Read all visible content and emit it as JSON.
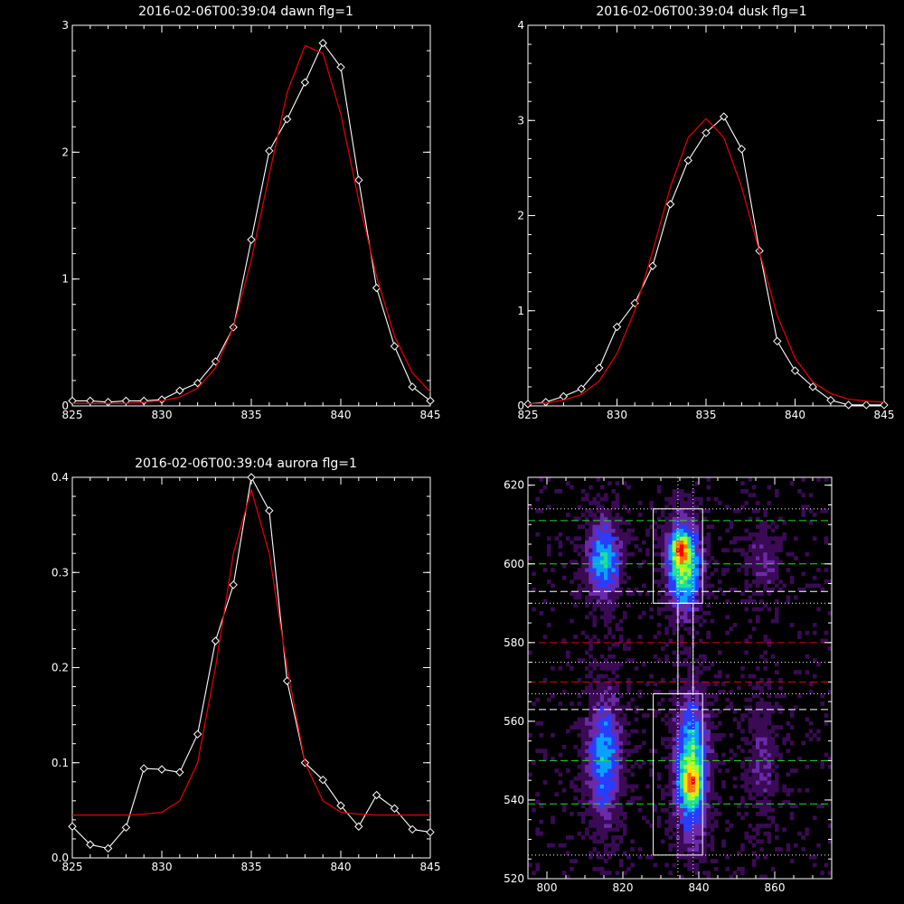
{
  "chart_data": [
    {
      "type": "line",
      "title": "2016-02-06T00:39:04 dawn flg=1",
      "xlim": [
        825,
        845
      ],
      "ylim": [
        0,
        3
      ],
      "xticks": [
        "825",
        "830",
        "835",
        "840",
        "845"
      ],
      "yticks": [
        "0",
        "1",
        "2",
        "3"
      ],
      "grid": false,
      "series": [
        {
          "role": "data",
          "color": "#ffffff",
          "marker": "diamond",
          "x": [
            825,
            826,
            827,
            828,
            829,
            830,
            831,
            832,
            833,
            834,
            835,
            836,
            837,
            838,
            839,
            840,
            841,
            842,
            843,
            844,
            845
          ],
          "y": [
            0.04,
            0.04,
            0.03,
            0.04,
            0.04,
            0.05,
            0.12,
            0.18,
            0.35,
            0.62,
            1.31,
            2.01,
            2.26,
            2.55,
            2.86,
            2.67,
            1.78,
            0.93,
            0.47,
            0.15,
            0.04
          ]
        },
        {
          "role": "fit",
          "color": "#dd0000",
          "x": [
            825,
            826,
            827,
            828,
            829,
            830,
            831,
            832,
            833,
            834,
            835,
            836,
            837,
            838,
            839,
            840,
            841,
            842,
            843,
            844,
            845
          ],
          "y": [
            0.02,
            0.02,
            0.02,
            0.02,
            0.03,
            0.04,
            0.07,
            0.14,
            0.3,
            0.62,
            1.15,
            1.82,
            2.47,
            2.84,
            2.78,
            2.3,
            1.62,
            1.02,
            0.55,
            0.26,
            0.11
          ]
        }
      ]
    },
    {
      "type": "line",
      "title": "2016-02-06T00:39:04 dusk flg=1",
      "xlim": [
        825,
        845
      ],
      "ylim": [
        0,
        4
      ],
      "xticks": [
        "825",
        "830",
        "835",
        "840",
        "845"
      ],
      "yticks": [
        "0",
        "1",
        "2",
        "3",
        "4"
      ],
      "grid": false,
      "series": [
        {
          "role": "data",
          "color": "#ffffff",
          "marker": "diamond",
          "x": [
            825,
            826,
            827,
            828,
            829,
            830,
            831,
            832,
            833,
            834,
            835,
            836,
            837,
            838,
            839,
            840,
            841,
            842,
            843,
            844,
            845
          ],
          "y": [
            0.02,
            0.04,
            0.1,
            0.18,
            0.4,
            0.83,
            1.08,
            1.47,
            2.12,
            2.58,
            2.87,
            3.04,
            2.7,
            1.63,
            0.68,
            0.37,
            0.2,
            0.06,
            0.01,
            0.01,
            0.01
          ]
        },
        {
          "role": "fit",
          "color": "#dd0000",
          "x": [
            825,
            826,
            827,
            828,
            829,
            830,
            831,
            832,
            833,
            834,
            835,
            836,
            837,
            838,
            839,
            840,
            841,
            842,
            843,
            844,
            845
          ],
          "y": [
            0.02,
            0.03,
            0.06,
            0.12,
            0.26,
            0.55,
            1.0,
            1.62,
            2.3,
            2.82,
            3.02,
            2.82,
            2.3,
            1.62,
            0.95,
            0.5,
            0.25,
            0.13,
            0.07,
            0.05,
            0.04
          ]
        }
      ]
    },
    {
      "type": "line",
      "title": "2016-02-06T00:39:04 aurora flg=1",
      "xlim": [
        825,
        845
      ],
      "ylim": [
        0,
        0.4
      ],
      "xticks": [
        "825",
        "830",
        "835",
        "840",
        "845"
      ],
      "yticks": [
        "0.0",
        "0.1",
        "0.2",
        "0.3",
        "0.4"
      ],
      "grid": false,
      "series": [
        {
          "role": "data",
          "color": "#ffffff",
          "marker": "diamond",
          "x": [
            825,
            826,
            827,
            828,
            829,
            830,
            831,
            832,
            833,
            834,
            835,
            836,
            837,
            838,
            839,
            840,
            841,
            842,
            843,
            844,
            845
          ],
          "y": [
            0.033,
            0.014,
            0.01,
            0.032,
            0.094,
            0.093,
            0.09,
            0.13,
            0.228,
            0.287,
            0.4,
            0.365,
            0.186,
            0.1,
            0.082,
            0.055,
            0.033,
            0.066,
            0.052,
            0.03,
            0.027
          ]
        },
        {
          "role": "fit",
          "color": "#dd0000",
          "x": [
            825,
            826,
            827,
            828,
            829,
            830,
            831,
            832,
            833,
            834,
            835,
            836,
            837,
            838,
            839,
            840,
            841,
            842,
            843,
            844,
            845
          ],
          "y": [
            0.045,
            0.045,
            0.045,
            0.045,
            0.046,
            0.048,
            0.06,
            0.1,
            0.2,
            0.32,
            0.387,
            0.32,
            0.2,
            0.1,
            0.06,
            0.048,
            0.046,
            0.045,
            0.045,
            0.045,
            0.045
          ]
        }
      ]
    },
    {
      "type": "heatmap",
      "title": "",
      "xlim": [
        795,
        875
      ],
      "ylim": [
        520,
        622
      ],
      "xticks": [
        "800",
        "820",
        "840",
        "860"
      ],
      "yticks": [
        "520",
        "540",
        "560",
        "580",
        "600",
        "620"
      ],
      "grid": false,
      "colormap": [
        "#000000",
        "#3a0a55",
        "#6a2aa8",
        "#2a3cff",
        "#0aa0ff",
        "#20e0a0",
        "#9aff30",
        "#ffe000",
        "#ff7000",
        "#ff0000"
      ],
      "blobs": [
        {
          "x": 815,
          "y": 601,
          "sx": 3,
          "sy": 7,
          "amp": 0.5
        },
        {
          "x": 815,
          "y": 551,
          "sx": 3.2,
          "sy": 11,
          "amp": 0.46
        },
        {
          "x": 836,
          "y": 600,
          "sx": 3,
          "sy": 8,
          "amp": 0.72
        },
        {
          "x": 835,
          "y": 604,
          "sx": 1.5,
          "sy": 2,
          "amp": 0.4
        },
        {
          "x": 838,
          "y": 548,
          "sx": 3,
          "sy": 12,
          "amp": 0.66
        },
        {
          "x": 838,
          "y": 544,
          "sx": 1.5,
          "sy": 2.5,
          "amp": 0.36
        },
        {
          "x": 857,
          "y": 601,
          "sx": 3,
          "sy": 7,
          "amp": 0.18
        },
        {
          "x": 857,
          "y": 551,
          "sx": 3,
          "sy": 11,
          "amp": 0.17
        }
      ],
      "hlines": [
        {
          "y": 611,
          "color": "#22dd22",
          "style": "dashed"
        },
        {
          "y": 600,
          "color": "#22dd22",
          "style": "dashed"
        },
        {
          "y": 593,
          "color": "#ffffff",
          "style": "dashed"
        },
        {
          "y": 580,
          "color": "#dd0000",
          "style": "dashed"
        },
        {
          "y": 570,
          "color": "#dd0000",
          "style": "dashed"
        },
        {
          "y": 563,
          "color": "#ffffff",
          "style": "dashed"
        },
        {
          "y": 550,
          "color": "#22dd22",
          "style": "dashed"
        },
        {
          "y": 539,
          "color": "#22dd22",
          "style": "dashed"
        },
        {
          "y": 614,
          "color": "#ffffff",
          "style": "dotted"
        },
        {
          "y": 590,
          "color": "#ffffff",
          "style": "dotted"
        },
        {
          "y": 575,
          "color": "#ffffff",
          "style": "dotted"
        },
        {
          "y": 567,
          "color": "#ffffff",
          "style": "dotted"
        },
        {
          "y": 526,
          "color": "#ffffff",
          "style": "dotted"
        }
      ],
      "vlines": [
        {
          "x": 834.5,
          "color": "#ffffff",
          "style": "dotted"
        },
        {
          "x": 838.5,
          "color": "#ffffff",
          "style": "dotted"
        }
      ],
      "boxes": [
        {
          "x0": 828,
          "x1": 841,
          "y0": 590,
          "y1": 614
        },
        {
          "x0": 834.5,
          "x1": 838.5,
          "y0": 567,
          "y1": 590
        },
        {
          "x0": 828,
          "x1": 841,
          "y0": 526,
          "y1": 567
        }
      ]
    }
  ]
}
